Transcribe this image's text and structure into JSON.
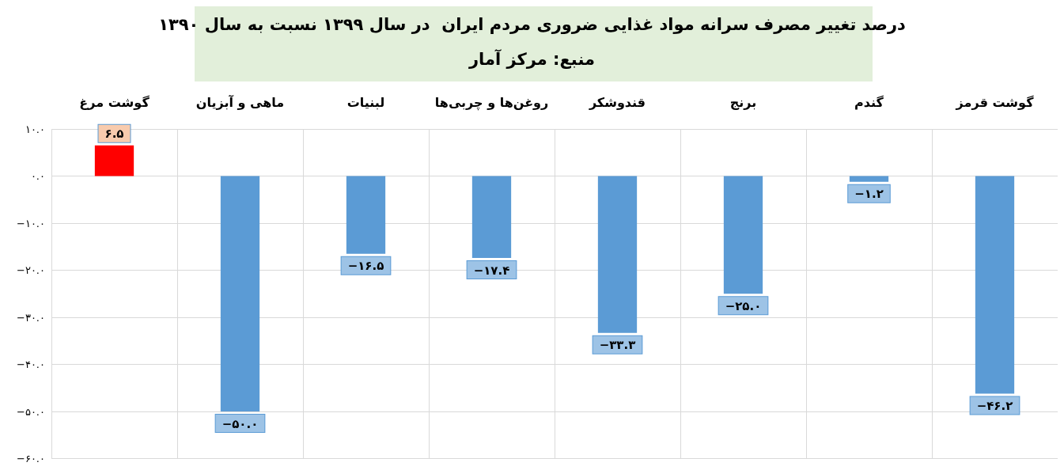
{
  "chart_data": {
    "type": "bar",
    "title": "درصد تغییر مصرف سرانه مواد غذایی ضروری مردم ایران  در سال ۱۳۹۹ نسبت به سال ۱۳۹۰",
    "annotations": [
      "منبع: مرکز آمار"
    ],
    "categories": [
      "گوشت مرغ",
      "ماهی و آبزیان",
      "لبنیات",
      "روغن‌ها و چربی‌ها",
      "قندوشکر",
      "برنج",
      "گندم",
      "گوشت قرمز"
    ],
    "values": [
      6.5,
      -50.0,
      -16.5,
      -17.4,
      -33.3,
      -25.0,
      -1.2,
      -46.2
    ],
    "value_labels": [
      "۶.۵",
      "−۵۰.۰",
      "−۱۶.۵",
      "−۱۷.۴",
      "−۳۳.۳",
      "−۲۵.۰",
      "−۱.۲",
      "−۴۶.۲"
    ],
    "colors": [
      "#ff0000",
      "#5b9bd5",
      "#5b9bd5",
      "#5b9bd5",
      "#5b9bd5",
      "#5b9bd5",
      "#5b9bd5",
      "#5b9bd5"
    ],
    "ylim": [
      -60,
      10
    ],
    "yticks": [
      {
        "value": 10,
        "label": "۱۰.۰"
      },
      {
        "value": 0,
        "label": "۰.۰"
      },
      {
        "value": -10,
        "label": "−۱۰.۰"
      },
      {
        "value": -20,
        "label": "−۲۰.۰"
      },
      {
        "value": -30,
        "label": "−۳۰.۰"
      },
      {
        "value": -40,
        "label": "−۴۰.۰"
      },
      {
        "value": -50,
        "label": "−۵۰.۰"
      },
      {
        "value": -60,
        "label": "−۶۰.۰"
      }
    ],
    "grid": true
  }
}
